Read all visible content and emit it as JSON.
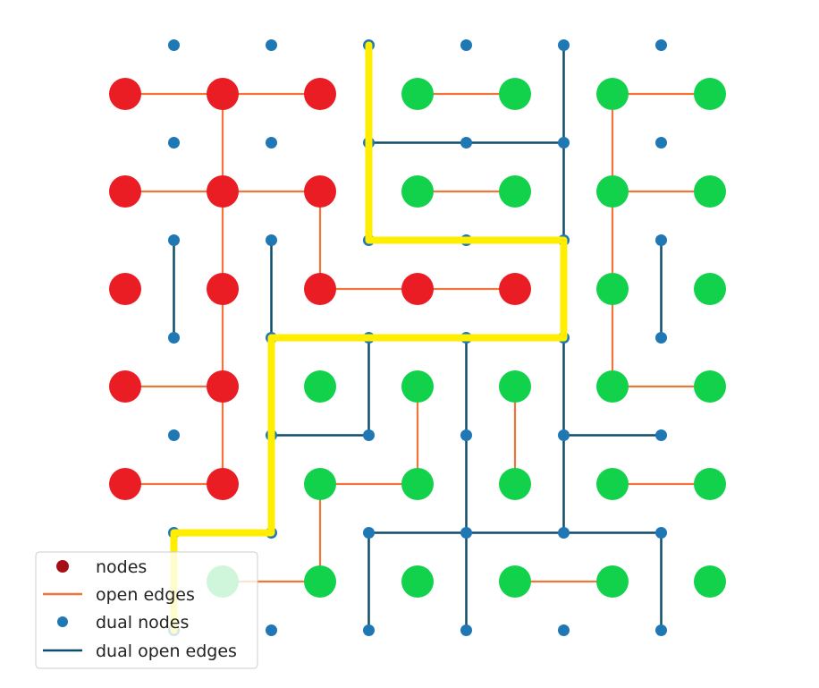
{
  "diagram": {
    "type": "percolation-lattice-with-dual",
    "colors": {
      "red_node": "#ea1c24",
      "green_node": "#12d14b",
      "open_edge": "#f0753a",
      "dual_node": "#1f77b4",
      "dual_edge": "#0f4c6a",
      "path": "#ffee00",
      "legend_node_marker": "#a50f15"
    },
    "nodes": [
      {
        "row": 0,
        "col": 0,
        "cluster": "red"
      },
      {
        "row": 0,
        "col": 1,
        "cluster": "red"
      },
      {
        "row": 0,
        "col": 2,
        "cluster": "red"
      },
      {
        "row": 0,
        "col": 3,
        "cluster": "green"
      },
      {
        "row": 0,
        "col": 4,
        "cluster": "green"
      },
      {
        "row": 0,
        "col": 5,
        "cluster": "green"
      },
      {
        "row": 0,
        "col": 6,
        "cluster": "green"
      },
      {
        "row": 1,
        "col": 0,
        "cluster": "red"
      },
      {
        "row": 1,
        "col": 1,
        "cluster": "red"
      },
      {
        "row": 1,
        "col": 2,
        "cluster": "red"
      },
      {
        "row": 1,
        "col": 3,
        "cluster": "green"
      },
      {
        "row": 1,
        "col": 4,
        "cluster": "green"
      },
      {
        "row": 1,
        "col": 5,
        "cluster": "green"
      },
      {
        "row": 1,
        "col": 6,
        "cluster": "green"
      },
      {
        "row": 2,
        "col": 0,
        "cluster": "red"
      },
      {
        "row": 2,
        "col": 1,
        "cluster": "red"
      },
      {
        "row": 2,
        "col": 2,
        "cluster": "red"
      },
      {
        "row": 2,
        "col": 3,
        "cluster": "red"
      },
      {
        "row": 2,
        "col": 4,
        "cluster": "red"
      },
      {
        "row": 2,
        "col": 5,
        "cluster": "green"
      },
      {
        "row": 2,
        "col": 6,
        "cluster": "green"
      },
      {
        "row": 3,
        "col": 0,
        "cluster": "red"
      },
      {
        "row": 3,
        "col": 1,
        "cluster": "red"
      },
      {
        "row": 3,
        "col": 2,
        "cluster": "green"
      },
      {
        "row": 3,
        "col": 3,
        "cluster": "green"
      },
      {
        "row": 3,
        "col": 4,
        "cluster": "green"
      },
      {
        "row": 3,
        "col": 5,
        "cluster": "green"
      },
      {
        "row": 3,
        "col": 6,
        "cluster": "green"
      },
      {
        "row": 4,
        "col": 0,
        "cluster": "red"
      },
      {
        "row": 4,
        "col": 1,
        "cluster": "red"
      },
      {
        "row": 4,
        "col": 2,
        "cluster": "green"
      },
      {
        "row": 4,
        "col": 3,
        "cluster": "green"
      },
      {
        "row": 4,
        "col": 4,
        "cluster": "green"
      },
      {
        "row": 4,
        "col": 5,
        "cluster": "green"
      },
      {
        "row": 4,
        "col": 6,
        "cluster": "green"
      },
      {
        "row": 5,
        "col": 1,
        "cluster": "green"
      },
      {
        "row": 5,
        "col": 2,
        "cluster": "green"
      },
      {
        "row": 5,
        "col": 3,
        "cluster": "green"
      },
      {
        "row": 5,
        "col": 4,
        "cluster": "green"
      },
      {
        "row": 5,
        "col": 5,
        "cluster": "green"
      },
      {
        "row": 5,
        "col": 6,
        "cluster": "green"
      }
    ],
    "open_edges": [
      [
        [
          0,
          0
        ],
        [
          0,
          1
        ]
      ],
      [
        [
          0,
          1
        ],
        [
          0,
          2
        ]
      ],
      [
        [
          0,
          1
        ],
        [
          1,
          1
        ]
      ],
      [
        [
          0,
          3
        ],
        [
          0,
          4
        ]
      ],
      [
        [
          0,
          5
        ],
        [
          0,
          6
        ]
      ],
      [
        [
          0,
          5
        ],
        [
          1,
          5
        ]
      ],
      [
        [
          1,
          0
        ],
        [
          1,
          1
        ]
      ],
      [
        [
          1,
          1
        ],
        [
          1,
          2
        ]
      ],
      [
        [
          1,
          1
        ],
        [
          2,
          1
        ]
      ],
      [
        [
          1,
          2
        ],
        [
          2,
          2
        ]
      ],
      [
        [
          1,
          3
        ],
        [
          1,
          4
        ]
      ],
      [
        [
          1,
          5
        ],
        [
          1,
          6
        ]
      ],
      [
        [
          1,
          5
        ],
        [
          2,
          5
        ]
      ],
      [
        [
          2,
          2
        ],
        [
          2,
          3
        ]
      ],
      [
        [
          2,
          3
        ],
        [
          2,
          4
        ]
      ],
      [
        [
          2,
          1
        ],
        [
          3,
          1
        ]
      ],
      [
        [
          2,
          5
        ],
        [
          3,
          5
        ]
      ],
      [
        [
          3,
          0
        ],
        [
          3,
          1
        ]
      ],
      [
        [
          3,
          1
        ],
        [
          4,
          1
        ]
      ],
      [
        [
          3,
          3
        ],
        [
          4,
          3
        ]
      ],
      [
        [
          3,
          4
        ],
        [
          4,
          4
        ]
      ],
      [
        [
          3,
          5
        ],
        [
          3,
          6
        ]
      ],
      [
        [
          4,
          0
        ],
        [
          4,
          1
        ]
      ],
      [
        [
          4,
          2
        ],
        [
          4,
          3
        ]
      ],
      [
        [
          4,
          2
        ],
        [
          5,
          2
        ]
      ],
      [
        [
          4,
          5
        ],
        [
          4,
          6
        ]
      ],
      [
        [
          5,
          1
        ],
        [
          5,
          2
        ]
      ],
      [
        [
          5,
          4
        ],
        [
          5,
          5
        ]
      ]
    ],
    "dual_nodes": [
      {
        "row": 0,
        "col": 0
      },
      {
        "row": 0,
        "col": 1
      },
      {
        "row": 0,
        "col": 2
      },
      {
        "row": 0,
        "col": 3
      },
      {
        "row": 0,
        "col": 4
      },
      {
        "row": 0,
        "col": 5
      },
      {
        "row": 1,
        "col": 0
      },
      {
        "row": 1,
        "col": 1
      },
      {
        "row": 1,
        "col": 2
      },
      {
        "row": 1,
        "col": 3
      },
      {
        "row": 1,
        "col": 4
      },
      {
        "row": 1,
        "col": 5
      },
      {
        "row": 2,
        "col": 0
      },
      {
        "row": 2,
        "col": 1
      },
      {
        "row": 2,
        "col": 2
      },
      {
        "row": 2,
        "col": 3
      },
      {
        "row": 2,
        "col": 4
      },
      {
        "row": 2,
        "col": 5
      },
      {
        "row": 3,
        "col": 0
      },
      {
        "row": 3,
        "col": 1
      },
      {
        "row": 3,
        "col": 2
      },
      {
        "row": 3,
        "col": 3
      },
      {
        "row": 3,
        "col": 4
      },
      {
        "row": 3,
        "col": 5
      },
      {
        "row": 4,
        "col": 0
      },
      {
        "row": 4,
        "col": 1
      },
      {
        "row": 4,
        "col": 2
      },
      {
        "row": 4,
        "col": 3
      },
      {
        "row": 4,
        "col": 4
      },
      {
        "row": 4,
        "col": 5
      },
      {
        "row": 5,
        "col": 0
      },
      {
        "row": 5,
        "col": 1
      },
      {
        "row": 5,
        "col": 2
      },
      {
        "row": 5,
        "col": 3
      },
      {
        "row": 5,
        "col": 4
      },
      {
        "row": 5,
        "col": 5
      },
      {
        "row": 6,
        "col": 0
      },
      {
        "row": 6,
        "col": 1
      },
      {
        "row": 6,
        "col": 2
      },
      {
        "row": 6,
        "col": 3
      },
      {
        "row": 6,
        "col": 4
      },
      {
        "row": 6,
        "col": 5
      }
    ],
    "dual_open_edges": [
      [
        [
          0,
          4
        ],
        [
          1,
          4
        ]
      ],
      [
        [
          1,
          2
        ],
        [
          1,
          3
        ]
      ],
      [
        [
          1,
          3
        ],
        [
          1,
          4
        ]
      ],
      [
        [
          1,
          4
        ],
        [
          2,
          4
        ]
      ],
      [
        [
          2,
          0
        ],
        [
          3,
          0
        ]
      ],
      [
        [
          2,
          1
        ],
        [
          3,
          1
        ]
      ],
      [
        [
          2,
          5
        ],
        [
          3,
          5
        ]
      ],
      [
        [
          2,
          2
        ],
        [
          2,
          3
        ]
      ],
      [
        [
          2,
          3
        ],
        [
          2,
          4
        ]
      ],
      [
        [
          3,
          1
        ],
        [
          3,
          2
        ]
      ],
      [
        [
          3,
          2
        ],
        [
          3,
          3
        ]
      ],
      [
        [
          3,
          3
        ],
        [
          3,
          4
        ]
      ],
      [
        [
          2,
          4
        ],
        [
          3,
          4
        ]
      ],
      [
        [
          3,
          2
        ],
        [
          4,
          2
        ]
      ],
      [
        [
          3,
          3
        ],
        [
          4,
          3
        ]
      ],
      [
        [
          3,
          4
        ],
        [
          4,
          4
        ]
      ],
      [
        [
          4,
          1
        ],
        [
          4,
          2
        ]
      ],
      [
        [
          4,
          4
        ],
        [
          4,
          5
        ]
      ],
      [
        [
          4,
          3
        ],
        [
          5,
          3
        ]
      ],
      [
        [
          4,
          4
        ],
        [
          5,
          4
        ]
      ],
      [
        [
          5,
          2
        ],
        [
          5,
          3
        ]
      ],
      [
        [
          5,
          3
        ],
        [
          5,
          4
        ]
      ],
      [
        [
          5,
          4
        ],
        [
          5,
          5
        ]
      ],
      [
        [
          5,
          2
        ],
        [
          6,
          2
        ]
      ],
      [
        [
          5,
          3
        ],
        [
          6,
          3
        ]
      ],
      [
        [
          5,
          5
        ],
        [
          6,
          5
        ]
      ]
    ],
    "highlight_path": [
      [
        0,
        2
      ],
      [
        2,
        2
      ],
      [
        2,
        4
      ],
      [
        3,
        4
      ],
      [
        3,
        1
      ],
      [
        5,
        1
      ],
      [
        5,
        0
      ],
      [
        6,
        0
      ]
    ]
  },
  "legend": {
    "position": "bottom-left",
    "entries": [
      {
        "label": "nodes",
        "kind": "node"
      },
      {
        "label": "open edges",
        "kind": "open-edge"
      },
      {
        "label": "dual nodes",
        "kind": "dual-node"
      },
      {
        "label": "dual open edges",
        "kind": "dual-edge"
      }
    ]
  }
}
